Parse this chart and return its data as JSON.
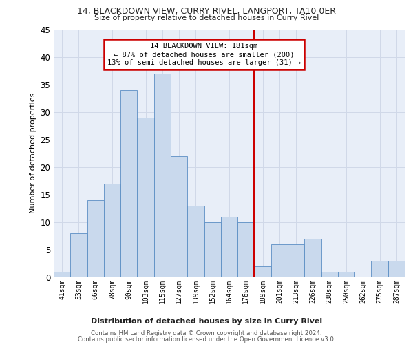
{
  "title_line1": "14, BLACKDOWN VIEW, CURRY RIVEL, LANGPORT, TA10 0ER",
  "title_line2": "Size of property relative to detached houses in Curry Rivel",
  "xlabel": "Distribution of detached houses by size in Curry Rivel",
  "ylabel": "Number of detached properties",
  "categories": [
    "41sqm",
    "53sqm",
    "66sqm",
    "78sqm",
    "90sqm",
    "103sqm",
    "115sqm",
    "127sqm",
    "139sqm",
    "152sqm",
    "164sqm",
    "176sqm",
    "189sqm",
    "201sqm",
    "213sqm",
    "226sqm",
    "238sqm",
    "250sqm",
    "262sqm",
    "275sqm",
    "287sqm"
  ],
  "values": [
    1,
    8,
    14,
    17,
    34,
    29,
    37,
    22,
    13,
    10,
    11,
    10,
    2,
    6,
    6,
    7,
    1,
    1,
    0,
    3,
    3
  ],
  "bar_color": "#c9d9ed",
  "bar_edge_color": "#5b8ec4",
  "vline_color": "#cc0000",
  "annotation_text": "14 BLACKDOWN VIEW: 181sqm\n← 87% of detached houses are smaller (200)\n13% of semi-detached houses are larger (31) →",
  "annotation_box_color": "#cc0000",
  "ylim": [
    0,
    45
  ],
  "yticks": [
    0,
    5,
    10,
    15,
    20,
    25,
    30,
    35,
    40,
    45
  ],
  "grid_color": "#d0d8e8",
  "background_color": "#e8eef8",
  "footer_line1": "Contains HM Land Registry data © Crown copyright and database right 2024.",
  "footer_line2": "Contains public sector information licensed under the Open Government Licence v3.0."
}
